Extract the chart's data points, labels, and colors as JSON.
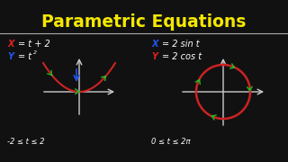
{
  "background_color": "#111111",
  "title": "Parametric Equations",
  "title_color": "#f5e800",
  "title_fontsize": 13.5,
  "divider_color": "#aaaaaa",
  "eq1_x_color": "#dd2222",
  "eq1_y_color": "#2255ee",
  "eq2_x_color": "#2255ee",
  "eq2_y_color": "#dd2222",
  "axis_color": "#cccccc",
  "parabola_color": "#cc2222",
  "circle_color": "#cc2222",
  "arrow_color": "#22bb22",
  "text_color": "#ffffff",
  "range1_text": "-2 ≤ t ≤ 2",
  "range2_text": "0 ≤ t ≤ 2π"
}
